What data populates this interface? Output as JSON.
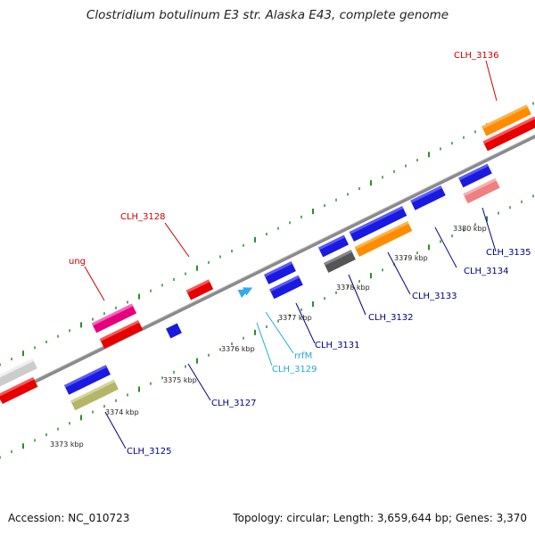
{
  "title": "Clostridium botulinum E3 str. Alaska E43, complete genome",
  "footer": {
    "accession": "Accession: NC_010723",
    "summary": "Topology: circular; Length: 3,659,644 bp; Genes: 3,370"
  },
  "scale_labels": [
    "3373 kbp",
    "3374 kbp",
    "3375 kbp",
    "3376 kbp",
    "3377 kbp",
    "3378 kbp",
    "3379 kbp",
    "3380 kbp"
  ],
  "gene_labels": [
    {
      "id": "clh3136",
      "text": "CLH_3136",
      "color": "#cc0000"
    },
    {
      "id": "clh3128",
      "text": "CLH_3128",
      "color": "#cc0000"
    },
    {
      "id": "ung",
      "text": "ung",
      "color": "#cc0000"
    },
    {
      "id": "clh3135",
      "text": "CLH_3135",
      "color": "#000080"
    },
    {
      "id": "clh3134",
      "text": "CLH_3134",
      "color": "#000080"
    },
    {
      "id": "clh3133",
      "text": "CLH_3133",
      "color": "#000080"
    },
    {
      "id": "clh3132",
      "text": "CLH_3132",
      "color": "#000080"
    },
    {
      "id": "clh3131",
      "text": "CLH_3131",
      "color": "#000080"
    },
    {
      "id": "rrfm",
      "text": "rrfM",
      "color": "#22aadd"
    },
    {
      "id": "clh3129",
      "text": "CLH_3129",
      "color": "#22aadd"
    },
    {
      "id": "clh3127",
      "text": "CLH_3127",
      "color": "#000080"
    },
    {
      "id": "clh3125",
      "text": "CLH_3125",
      "color": "#000080"
    }
  ],
  "colors": {
    "backbone": "#8a8a8a",
    "ticks": "#2e8b2e",
    "blue": "#1a1adf",
    "red": "#e60000",
    "orange": "#ff8c00",
    "magenta": "#e6007e",
    "pink": "#f08080",
    "olive": "#b5b56a",
    "darkgray": "#555555",
    "lightgray": "#cccccc",
    "cyan": "#33aaee"
  }
}
